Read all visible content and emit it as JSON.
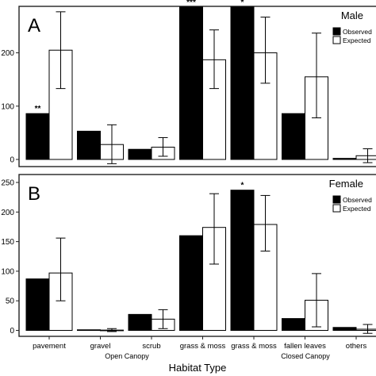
{
  "chart_data": [
    {
      "type": "bar",
      "panel_letter": "A",
      "panel_title": "Male",
      "categories": [
        "pavement",
        "gravel",
        "scrub",
        "grass & moss",
        "grass & moss",
        "fallen leaves",
        "others"
      ],
      "series": [
        {
          "name": "Observed",
          "color": "#000000",
          "values": [
            86,
            53,
            19,
            286,
            286,
            86,
            2
          ]
        },
        {
          "name": "Expected",
          "color": "#ffffff",
          "values": [
            205,
            28,
            23,
            187,
            200,
            155,
            7
          ]
        }
      ],
      "error_bars": [
        [
          133,
          277
        ],
        [
          -8,
          65
        ],
        [
          6,
          41
        ],
        [
          133,
          243
        ],
        [
          143,
          267
        ],
        [
          78,
          237
        ],
        [
          -6,
          20
        ]
      ],
      "significance": [
        "**",
        "",
        "",
        "***",
        "*",
        "",
        ""
      ],
      "ylim": [
        -10,
        300
      ],
      "yticks": [
        0,
        100,
        200
      ],
      "legend": "top-right",
      "grid": false
    },
    {
      "type": "bar",
      "panel_letter": "B",
      "panel_title": "Female",
      "categories": [
        "pavement",
        "gravel",
        "scrub",
        "grass & moss",
        "grass & moss",
        "fallen leaves",
        "others"
      ],
      "series": [
        {
          "name": "Observed",
          "color": "#000000",
          "values": [
            87,
            1,
            27,
            160,
            237,
            20,
            5
          ]
        },
        {
          "name": "Expected",
          "color": "#ffffff",
          "values": [
            97,
            0.5,
            19,
            174,
            179,
            51,
            2
          ]
        }
      ],
      "error_bars": [
        [
          50,
          156
        ],
        [
          -2,
          3
        ],
        [
          3,
          35
        ],
        [
          112,
          231
        ],
        [
          134,
          228
        ],
        [
          6,
          96
        ],
        [
          -5,
          10
        ]
      ],
      "significance": [
        "",
        "",
        "",
        "",
        "*",
        "",
        ""
      ],
      "ylim": [
        -10,
        250
      ],
      "yticks": [
        0,
        50,
        100,
        150,
        200,
        250
      ],
      "legend": "top-right",
      "grid": false
    }
  ],
  "groups": [
    {
      "label": "Open Canopy",
      "categories": [
        0,
        1,
        2,
        3
      ]
    },
    {
      "label": "Closed Canopy",
      "categories": [
        4,
        5,
        6
      ]
    }
  ],
  "x_axis_title": "Habitat Type"
}
